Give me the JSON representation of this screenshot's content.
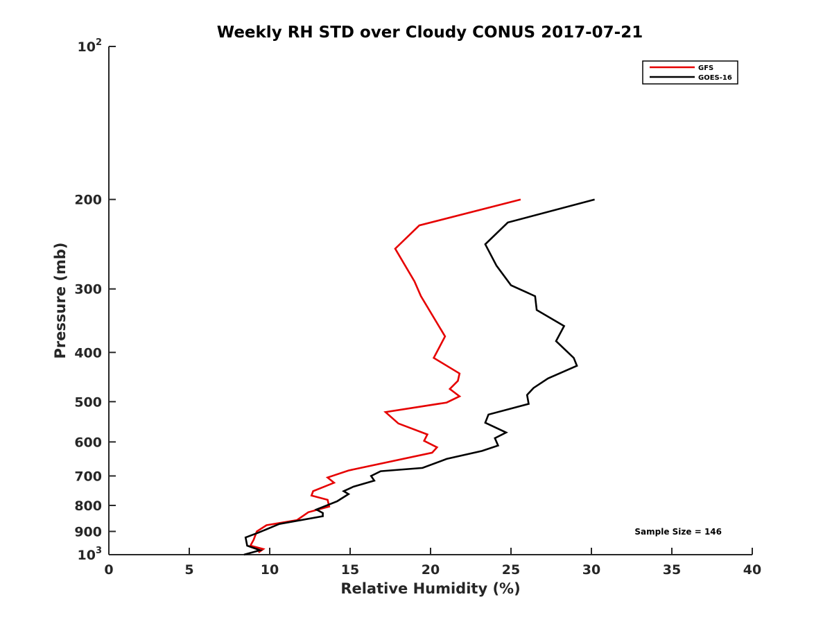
{
  "chart_data": {
    "type": "line",
    "title": "Weekly RH STD over Cloudy CONUS 2017-07-21",
    "xlabel": "Relative Humidity (%)",
    "ylabel": "Pressure (mb)",
    "xlim": [
      0,
      40
    ],
    "ylim": [
      100,
      1000
    ],
    "yscale": "log",
    "yreversed": true,
    "grid": false,
    "legend_position": "top-right",
    "x_ticks": [
      "0",
      "5",
      "10",
      "15",
      "20",
      "25",
      "30",
      "35",
      "40"
    ],
    "x_tick_values": [
      0,
      5,
      10,
      15,
      20,
      25,
      30,
      35,
      40
    ],
    "y_ticks": [
      {
        "value": 100,
        "base": "10",
        "exp": "2"
      },
      {
        "value": 200,
        "base": "200",
        "exp": ""
      },
      {
        "value": 300,
        "base": "300",
        "exp": ""
      },
      {
        "value": 400,
        "base": "400",
        "exp": ""
      },
      {
        "value": 500,
        "base": "500",
        "exp": ""
      },
      {
        "value": 600,
        "base": "600",
        "exp": ""
      },
      {
        "value": 700,
        "base": "700",
        "exp": ""
      },
      {
        "value": 800,
        "base": "800",
        "exp": ""
      },
      {
        "value": 900,
        "base": "900",
        "exp": ""
      },
      {
        "value": 1000,
        "base": "10",
        "exp": "3"
      }
    ],
    "series": [
      {
        "name": "GFS",
        "color": "#e60000",
        "points": [
          [
            25.6,
            200
          ],
          [
            19.3,
            225
          ],
          [
            17.8,
            250
          ],
          [
            19.0,
            290
          ],
          [
            19.4,
            310
          ],
          [
            20.9,
            372
          ],
          [
            20.2,
            410
          ],
          [
            21.8,
            440
          ],
          [
            21.7,
            455
          ],
          [
            21.2,
            472
          ],
          [
            21.8,
            488
          ],
          [
            21.0,
            502
          ],
          [
            17.2,
            524
          ],
          [
            18.0,
            552
          ],
          [
            19.8,
            580
          ],
          [
            19.6,
            597
          ],
          [
            20.4,
            615
          ],
          [
            20.1,
            630
          ],
          [
            14.9,
            683
          ],
          [
            13.6,
            705
          ],
          [
            14.0,
            722
          ],
          [
            12.7,
            750
          ],
          [
            12.6,
            765
          ],
          [
            13.6,
            780
          ],
          [
            13.7,
            804
          ],
          [
            12.4,
            825
          ],
          [
            11.7,
            855
          ],
          [
            9.8,
            875
          ],
          [
            9.2,
            900
          ],
          [
            9.0,
            935
          ],
          [
            8.8,
            960
          ],
          [
            9.6,
            975
          ],
          [
            9.3,
            990
          ]
        ]
      },
      {
        "name": "GOES-16",
        "color": "#000000",
        "points": [
          [
            30.2,
            200
          ],
          [
            24.8,
            222
          ],
          [
            23.4,
            245
          ],
          [
            24.1,
            270
          ],
          [
            25.0,
            295
          ],
          [
            26.5,
            310
          ],
          [
            26.6,
            330
          ],
          [
            28.3,
            355
          ],
          [
            27.8,
            380
          ],
          [
            28.9,
            410
          ],
          [
            29.1,
            425
          ],
          [
            27.3,
            450
          ],
          [
            26.4,
            470
          ],
          [
            26.0,
            485
          ],
          [
            26.1,
            505
          ],
          [
            23.6,
            530
          ],
          [
            23.4,
            550
          ],
          [
            24.7,
            575
          ],
          [
            24.0,
            590
          ],
          [
            24.2,
            610
          ],
          [
            23.2,
            625
          ],
          [
            21.0,
            648
          ],
          [
            19.5,
            675
          ],
          [
            16.9,
            685
          ],
          [
            16.3,
            700
          ],
          [
            16.5,
            715
          ],
          [
            15.2,
            735
          ],
          [
            14.6,
            750
          ],
          [
            14.9,
            760
          ],
          [
            14.2,
            785
          ],
          [
            12.9,
            815
          ],
          [
            13.3,
            828
          ],
          [
            13.3,
            840
          ],
          [
            10.6,
            870
          ],
          [
            9.3,
            905
          ],
          [
            8.5,
            925
          ],
          [
            8.6,
            960
          ],
          [
            9.4,
            980
          ],
          [
            8.4,
            1000
          ]
        ]
      }
    ],
    "legend": [
      "GFS",
      "GOES-16"
    ],
    "annotation": "Sample Size = 146"
  }
}
